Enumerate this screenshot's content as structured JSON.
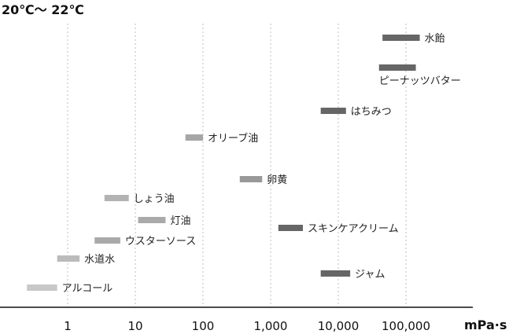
{
  "chart_data": {
    "type": "range-bar",
    "title": "20℃〜 22℃",
    "xlabel": "mPa·s",
    "xscale": "log",
    "xlim": [
      0.1,
      1000000
    ],
    "grid": "vertical-dashed",
    "ticks": [
      {
        "value": 1,
        "label": "1"
      },
      {
        "value": 10,
        "label": "10"
      },
      {
        "value": 100,
        "label": "100"
      },
      {
        "value": 1000,
        "label": "1,000"
      },
      {
        "value": 10000,
        "label": "10,000"
      },
      {
        "value": 100000,
        "label": "100,000"
      }
    ],
    "items": [
      {
        "name": "水飴",
        "min": 45000,
        "max": 160000,
        "shade": "#666666"
      },
      {
        "name": "ピーナッツバター",
        "min": 40000,
        "max": 140000,
        "shade": "#666666",
        "label_below": true
      },
      {
        "name": "はちみつ",
        "min": 5500,
        "max": 13000,
        "shade": "#666666"
      },
      {
        "name": "オリーブ油",
        "min": 55,
        "max": 100,
        "shade": "#a6a6a6"
      },
      {
        "name": "卵黄",
        "min": 350,
        "max": 750,
        "shade": "#999999"
      },
      {
        "name": "しょう油",
        "min": 3.5,
        "max": 8,
        "shade": "#b3b3b3"
      },
      {
        "name": "灯油",
        "min": 11,
        "max": 28,
        "shade": "#aaaaaa"
      },
      {
        "name": "ウスターソース",
        "min": 2.5,
        "max": 6,
        "shade": "#aaaaaa"
      },
      {
        "name": "スキンケアクリーム",
        "min": 1300,
        "max": 3000,
        "shade": "#666666"
      },
      {
        "name": "水道水",
        "min": 0.7,
        "max": 1.5,
        "shade": "#bbbbbb"
      },
      {
        "name": "ジャム",
        "min": 5500,
        "max": 15000,
        "shade": "#666666"
      },
      {
        "name": "アルコール",
        "min": 0.25,
        "max": 0.7,
        "shade": "#c8c8c8"
      }
    ]
  }
}
